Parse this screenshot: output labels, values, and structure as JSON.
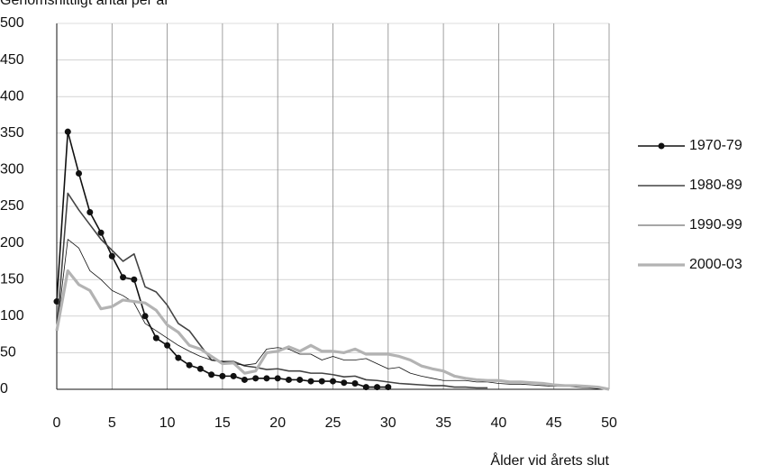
{
  "chart_data": {
    "type": "line",
    "title": "Genomsnittligt antal per år",
    "x_label": "Ålder vid årets slut",
    "xlim": [
      0,
      50
    ],
    "xticks": [
      0,
      5,
      10,
      15,
      20,
      25,
      30,
      35,
      40,
      45,
      50
    ],
    "ylim": [
      0,
      500
    ],
    "yticks": [
      0,
      50,
      100,
      150,
      200,
      250,
      300,
      350,
      400,
      450,
      500
    ],
    "grid": true,
    "legend": "right",
    "series": [
      {
        "name": "1970-79",
        "color": "#111111",
        "width": 1.6,
        "markers": true,
        "x": [
          0,
          1,
          2,
          3,
          4,
          5,
          6,
          7,
          8,
          9,
          10,
          11,
          12,
          13,
          14,
          15,
          16,
          17,
          18,
          19,
          20,
          21,
          22,
          23,
          24,
          25,
          26,
          27,
          28,
          29,
          30
        ],
        "values": [
          120,
          352,
          295,
          242,
          214,
          182,
          153,
          150,
          100,
          70,
          60,
          43,
          33,
          28,
          20,
          18,
          18,
          13,
          15,
          15,
          15,
          13,
          13,
          11,
          11,
          11,
          9,
          8,
          3,
          3,
          3
        ]
      },
      {
        "name": "1980-89",
        "color": "#444444",
        "width": 1.6,
        "markers": false,
        "x": [
          0,
          1,
          2,
          3,
          4,
          5,
          6,
          7,
          8,
          9,
          10,
          11,
          12,
          13,
          14,
          15,
          16,
          17,
          18,
          19,
          20,
          21,
          22,
          23,
          24,
          25,
          26,
          27,
          28,
          29,
          30,
          31,
          32,
          33,
          34,
          35,
          36,
          37,
          38,
          39
        ],
        "values": [
          80,
          268,
          245,
          225,
          205,
          190,
          175,
          185,
          140,
          133,
          115,
          90,
          80,
          60,
          40,
          38,
          38,
          32,
          30,
          27,
          28,
          25,
          25,
          22,
          22,
          20,
          17,
          18,
          13,
          12,
          10,
          8,
          7,
          6,
          5,
          5,
          3,
          3,
          2,
          2
        ]
      },
      {
        "name": "1990-99",
        "color": "#111111",
        "width": 0.8,
        "markers": false,
        "x": [
          0,
          1,
          2,
          3,
          4,
          5,
          6,
          7,
          8,
          9,
          10,
          11,
          12,
          13,
          14,
          15,
          16,
          17,
          18,
          19,
          20,
          21,
          22,
          23,
          24,
          25,
          26,
          27,
          28,
          29,
          30,
          31,
          32,
          33,
          34,
          35,
          36,
          37,
          38,
          39,
          40,
          41,
          42,
          43,
          44,
          45,
          46,
          47,
          48,
          49,
          50
        ],
        "values": [
          80,
          205,
          193,
          162,
          150,
          135,
          128,
          118,
          90,
          80,
          70,
          60,
          52,
          45,
          40,
          38,
          35,
          33,
          35,
          55,
          57,
          55,
          48,
          48,
          40,
          45,
          40,
          40,
          42,
          35,
          28,
          30,
          22,
          18,
          15,
          12,
          12,
          12,
          10,
          10,
          8,
          7,
          7,
          6,
          5,
          4,
          4,
          3,
          2,
          1,
          0
        ]
      },
      {
        "name": "2000-03",
        "color": "#b3b3b3",
        "width": 3.2,
        "markers": false,
        "x": [
          0,
          1,
          2,
          3,
          4,
          5,
          6,
          7,
          8,
          9,
          10,
          11,
          12,
          13,
          14,
          15,
          16,
          17,
          18,
          19,
          20,
          21,
          22,
          23,
          24,
          25,
          26,
          27,
          28,
          29,
          30,
          31,
          32,
          33,
          34,
          35,
          36,
          37,
          38,
          39,
          40,
          41,
          42,
          43,
          44,
          45,
          46,
          47,
          48,
          49,
          50
        ],
        "values": [
          80,
          162,
          143,
          135,
          110,
          113,
          122,
          120,
          118,
          108,
          88,
          78,
          60,
          55,
          45,
          35,
          36,
          22,
          25,
          50,
          52,
          58,
          52,
          60,
          52,
          52,
          50,
          55,
          48,
          48,
          48,
          45,
          40,
          32,
          28,
          25,
          18,
          15,
          13,
          12,
          12,
          10,
          10,
          9,
          8,
          6,
          5,
          5,
          4,
          3,
          0
        ]
      }
    ]
  }
}
